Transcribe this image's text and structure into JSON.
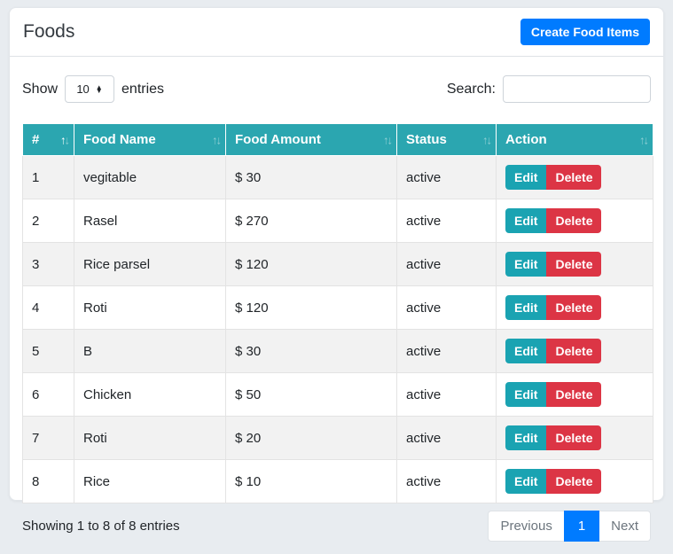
{
  "page": {
    "title": "Foods",
    "create_button_label": "Create Food Items"
  },
  "controls": {
    "show_label": "Show",
    "entries_label": "entries",
    "page_length": "10",
    "search_label": "Search:",
    "search_value": ""
  },
  "table": {
    "columns": [
      {
        "label": "#",
        "sort": "asc"
      },
      {
        "label": "Food Name",
        "sort": "none"
      },
      {
        "label": "Food Amount",
        "sort": "none"
      },
      {
        "label": "Status",
        "sort": "none"
      },
      {
        "label": "Action",
        "sort": "none"
      }
    ],
    "rows": [
      {
        "num": "1",
        "name": "vegitable",
        "amount": "$ 30",
        "status": "active"
      },
      {
        "num": "2",
        "name": "Rasel",
        "amount": "$ 270",
        "status": "active"
      },
      {
        "num": "3",
        "name": "Rice parsel",
        "amount": "$ 120",
        "status": "active"
      },
      {
        "num": "4",
        "name": "Roti",
        "amount": "$ 120",
        "status": "active"
      },
      {
        "num": "5",
        "name": "B",
        "amount": "$ 30",
        "status": "active"
      },
      {
        "num": "6",
        "name": "Chicken",
        "amount": "$ 50",
        "status": "active"
      },
      {
        "num": "7",
        "name": "Roti",
        "amount": "$ 20",
        "status": "active"
      },
      {
        "num": "8",
        "name": "Rice",
        "amount": "$ 10",
        "status": "active"
      }
    ],
    "actions": {
      "edit": "Edit",
      "delete": "Delete"
    }
  },
  "footer": {
    "info": "Showing 1 to 8 of 8 entries",
    "pagination": {
      "previous": "Previous",
      "page": "1",
      "next": "Next"
    }
  },
  "colors": {
    "table_header_teal": "#2ba6b0",
    "edit_button_teal": "#1aa3b2",
    "delete_button_red": "#dc3545",
    "primary_blue": "#007bff",
    "stripe_gray": "#f2f2f2"
  }
}
